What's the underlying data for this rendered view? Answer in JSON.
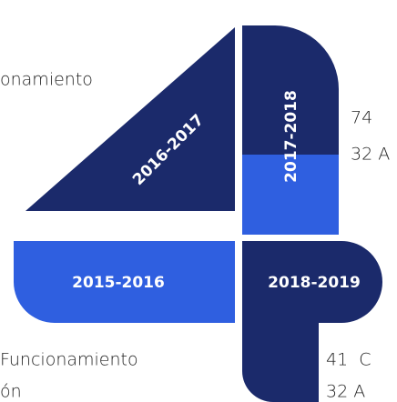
{
  "labels": {
    "top_left": "onamiento",
    "right_top_1": "74",
    "right_top_2": "32 A",
    "bottom_left_1": "Funcionamiento",
    "bottom_left_2": "ón",
    "bottom_right_1": "41  C",
    "bottom_right_2": "32 A"
  },
  "years": {
    "diagonal": "2016-2017",
    "vertical": "2017-2018",
    "horizontal": "2015-2016",
    "corner": "2018-2019"
  }
}
